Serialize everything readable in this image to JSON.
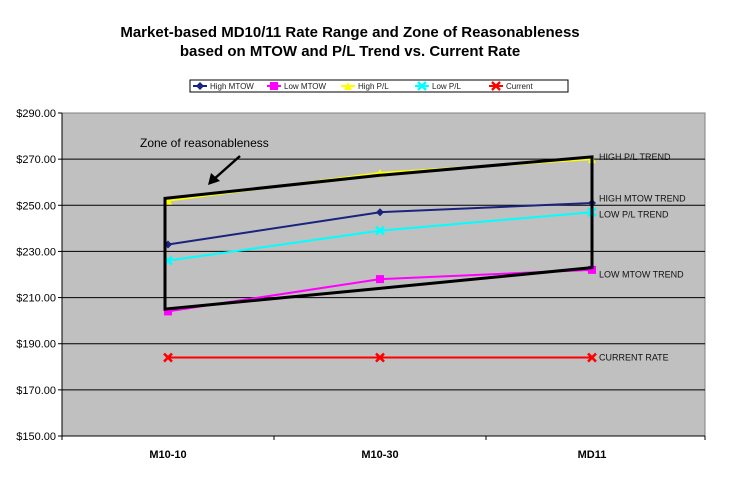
{
  "chart_data": {
    "type": "line",
    "title_lines": [
      "Market-based MD10/11 Rate Range and Zone of Reasonableness",
      "based on MTOW and P/L Trend vs. Current Rate"
    ],
    "xlabel": "",
    "ylabel": "",
    "categories": [
      "M10-10",
      "M10-30",
      "MD11"
    ],
    "ylim": [
      150,
      290
    ],
    "yticks": [
      "$150.00",
      "$170.00",
      "$190.00",
      "$210.00",
      "$230.00",
      "$250.00",
      "$270.00",
      "$290.00"
    ],
    "ytick_values": [
      150,
      170,
      190,
      210,
      230,
      250,
      270,
      290
    ],
    "grid": "horizontal",
    "legend_position": "top",
    "series": [
      {
        "name": "High MTOW",
        "values": [
          233,
          247,
          251
        ],
        "color": "#1a237e",
        "marker": "diamond"
      },
      {
        "name": "Low MTOW",
        "values": [
          204,
          218,
          222
        ],
        "color": "#ff00ff",
        "marker": "square"
      },
      {
        "name": "High P/L",
        "values": [
          252,
          264,
          270
        ],
        "color": "#ffff00",
        "marker": "triangle"
      },
      {
        "name": "Low P/L",
        "values": [
          226,
          239,
          247
        ],
        "color": "#00ffff",
        "marker": "x"
      },
      {
        "name": "Current",
        "values": [
          184,
          184,
          184
        ],
        "color": "#ff0000",
        "marker": "x"
      }
    ],
    "zone": {
      "label": "Zone of reasonableness",
      "upper": [
        253,
        263,
        271
      ],
      "lower": [
        205,
        214,
        223
      ]
    },
    "annotations": [
      {
        "text": "HIGH P/L TREND",
        "value": 271
      },
      {
        "text": "HIGH MTOW TREND",
        "value": 253
      },
      {
        "text": "LOW P/L TREND",
        "value": 246
      },
      {
        "text": "LOW MTOW TREND",
        "value": 220
      },
      {
        "text": "CURRENT RATE",
        "value": 184
      }
    ],
    "plot_background": "#c0c0c0"
  }
}
